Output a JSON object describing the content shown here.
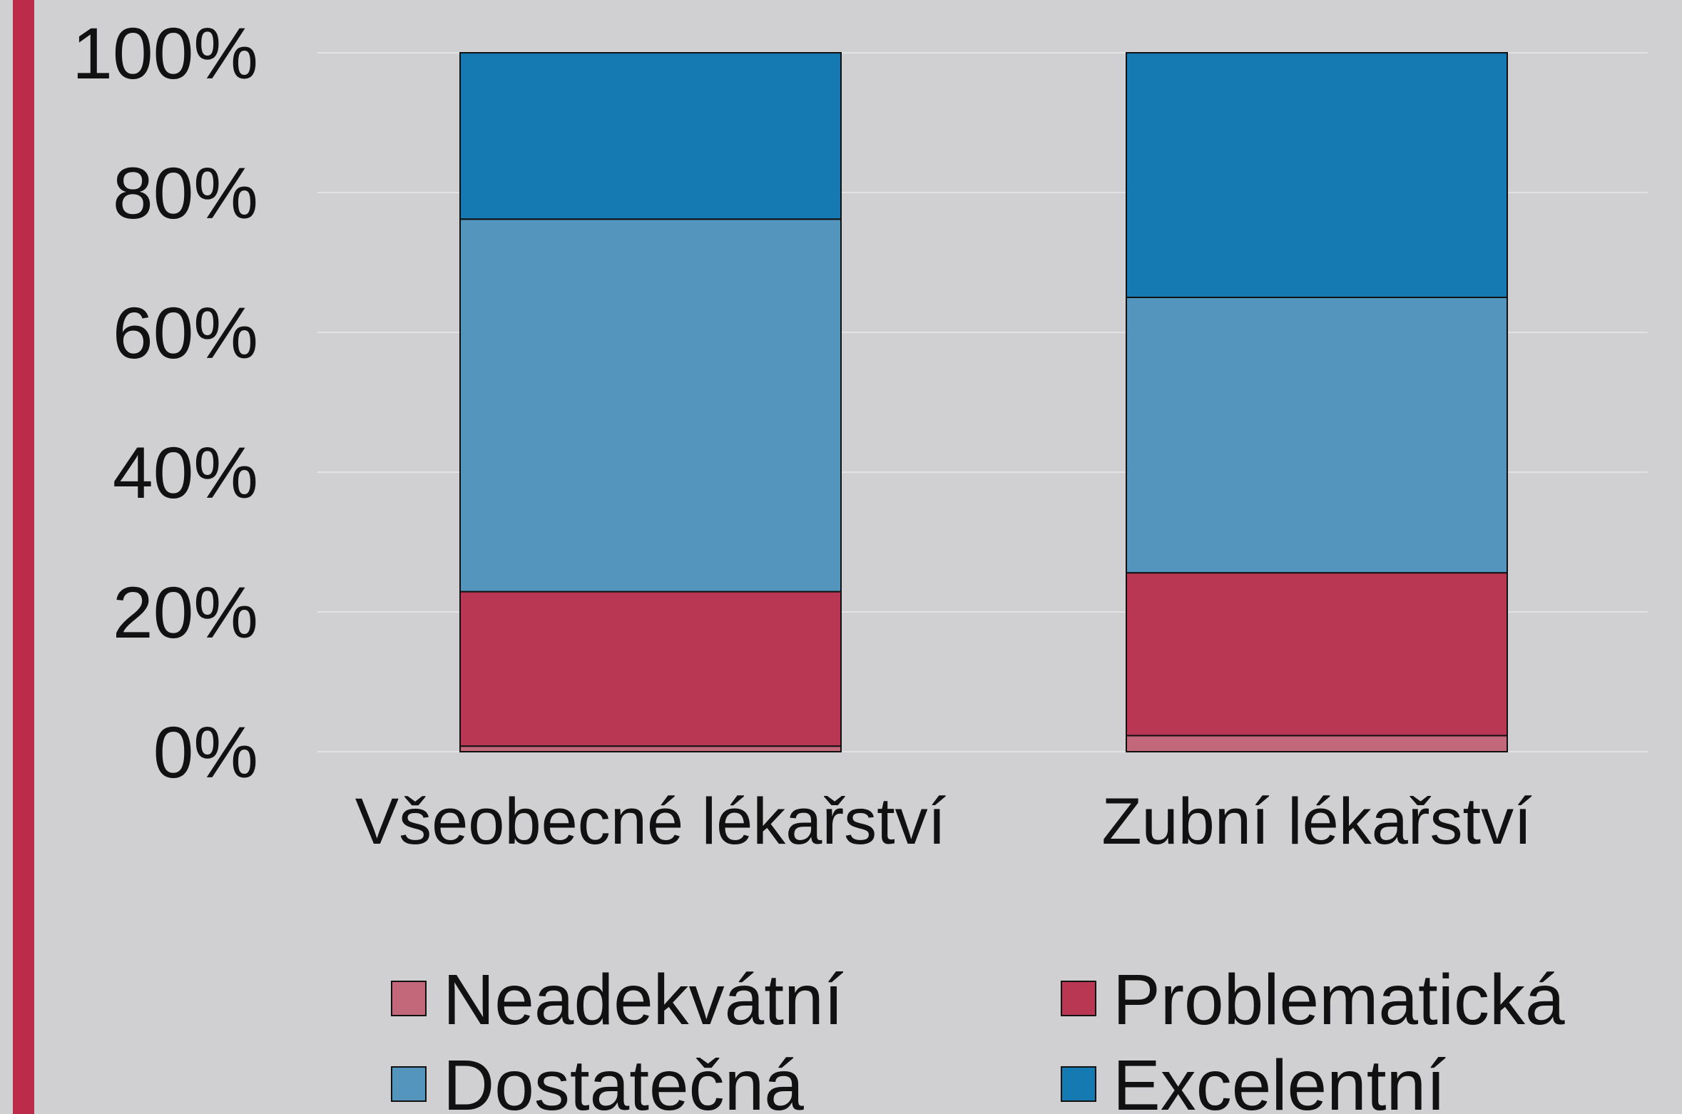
{
  "chart_data": {
    "type": "stacked-bar",
    "categories": [
      "Všeobecné lékařství",
      "Zubní lékařství"
    ],
    "series": [
      {
        "name": "Neadekvátní",
        "color": "#c3677a",
        "values": [
          0.8,
          2.3
        ]
      },
      {
        "name": "Problematická",
        "color": "#b93752",
        "values": [
          22.1,
          23.3
        ]
      },
      {
        "name": "Dostatečná",
        "color": "#5495bd",
        "values": [
          53.3,
          39.4
        ]
      },
      {
        "name": "Excelentní",
        "color": "#1579b2",
        "values": [
          23.8,
          35.0
        ]
      }
    ],
    "ylim": [
      0,
      100
    ],
    "yticks": [
      {
        "value": 0,
        "label": "0%"
      },
      {
        "value": 20,
        "label": "20%"
      },
      {
        "value": 40,
        "label": "40%"
      },
      {
        "value": 60,
        "label": "60%"
      },
      {
        "value": 80,
        "label": "80%"
      },
      {
        "value": 100,
        "label": "100%"
      }
    ],
    "grid": true
  }
}
